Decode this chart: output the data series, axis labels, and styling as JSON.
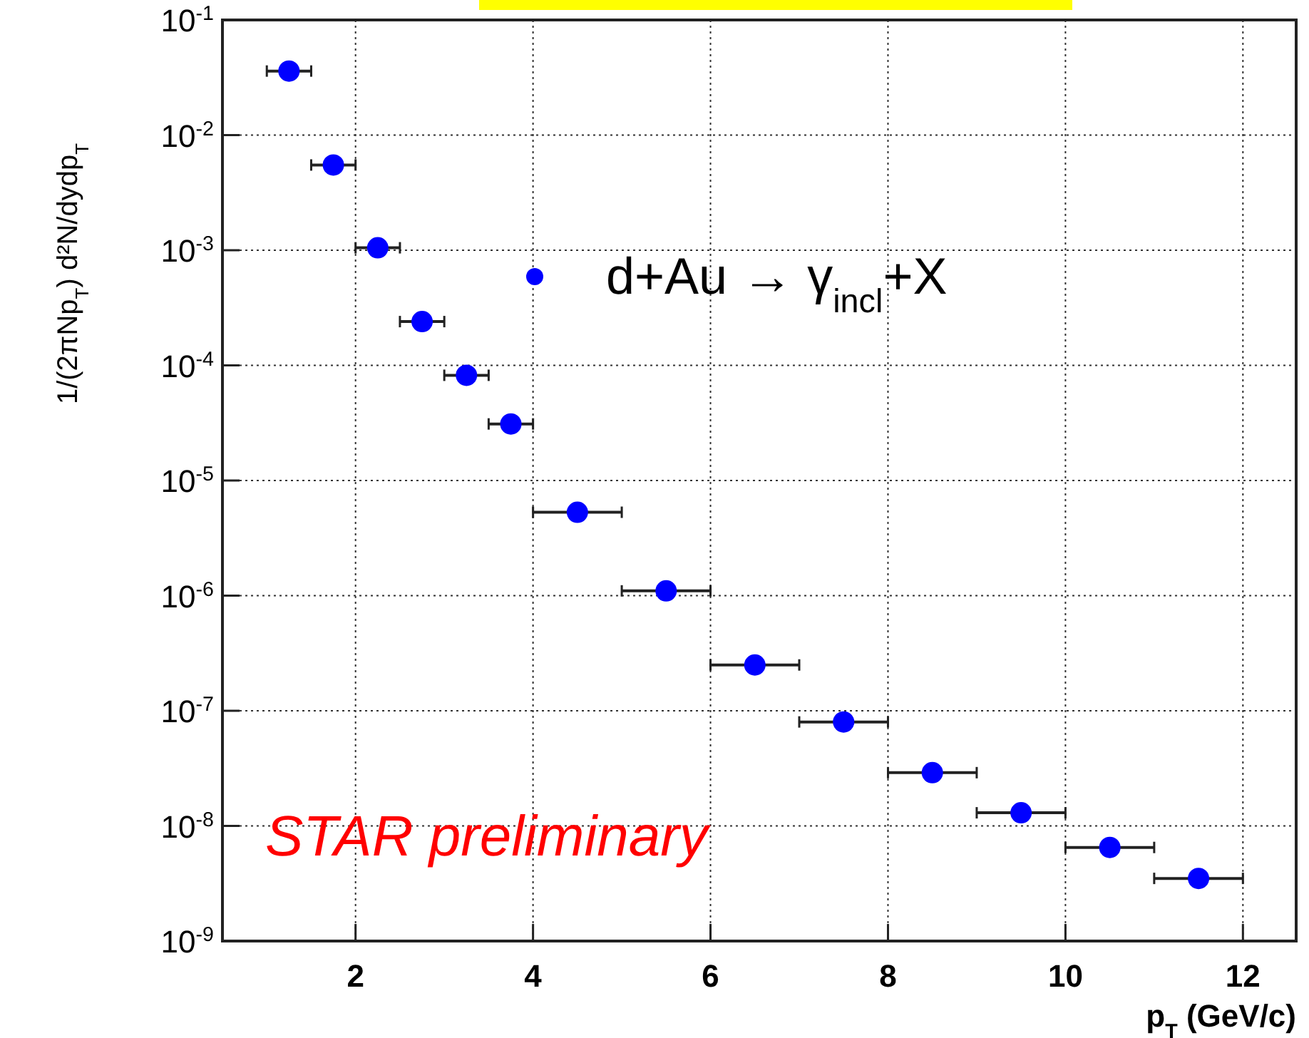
{
  "chart_data": {
    "type": "scatter",
    "xlabel": "p$_{T}$ (GeV/c)",
    "ylabel": "1/(2πNp$_{T}$) d²N/dydp$_{T}$",
    "x": [
      1.25,
      1.75,
      2.25,
      2.75,
      3.25,
      3.75,
      4.5,
      5.5,
      6.5,
      7.5,
      8.5,
      9.5,
      10.5,
      11.5
    ],
    "series": [
      {
        "name": "d+Au → γ$_{incl}$+X",
        "color": "#0000ff",
        "values": [
          0.036,
          0.0055,
          0.00105,
          0.00024,
          8.2e-05,
          3.1e-05,
          5.3e-06,
          1.1e-06,
          2.5e-07,
          8e-08,
          2.9e-08,
          1.3e-08,
          6.5e-09,
          3.5e-09
        ],
        "xerrors": [
          0.25,
          0.25,
          0.25,
          0.25,
          0.25,
          0.25,
          0.5,
          0.5,
          0.5,
          0.5,
          0.5,
          0.5,
          0.5,
          0.5
        ]
      }
    ],
    "xlim": [
      0.5,
      12.6
    ],
    "xticks": [
      2,
      4,
      6,
      8,
      10,
      12
    ],
    "ylim": [
      1e-09,
      0.1
    ],
    "yticks": [
      {
        "value": 1e-09,
        "label": "10$^{-9}$"
      },
      {
        "value": 1e-08,
        "label": "10$^{-8}$"
      },
      {
        "value": 1e-07,
        "label": "10$^{-7}$"
      },
      {
        "value": 1e-06,
        "label": "10$^{-6}$"
      },
      {
        "value": 1e-05,
        "label": "10$^{-5}$"
      },
      {
        "value": 0.0001,
        "label": "10$^{-4}$"
      },
      {
        "value": 0.001,
        "label": "10$^{-3}$"
      },
      {
        "value": 0.01,
        "label": "10$^{-2}$"
      },
      {
        "value": 0.1,
        "label": "10$^{-1}$"
      }
    ],
    "log": "y",
    "grid": true,
    "marker": "circle",
    "legend": "top right",
    "annotations": [
      "STAR preliminary"
    ]
  }
}
